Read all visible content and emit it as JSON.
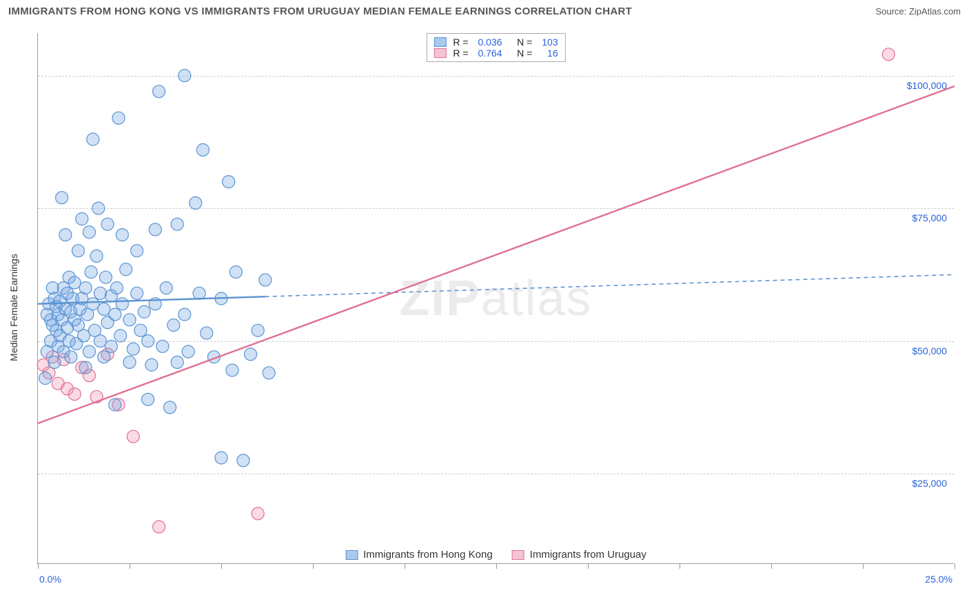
{
  "title": "IMMIGRANTS FROM HONG KONG VS IMMIGRANTS FROM URUGUAY MEDIAN FEMALE EARNINGS CORRELATION CHART",
  "source": "Source: ZipAtlas.com",
  "ylabel": "Median Female Earnings",
  "watermark_a": "ZIP",
  "watermark_b": "atlas",
  "chart": {
    "type": "scatter",
    "xlim": [
      0,
      25
    ],
    "ylim": [
      8000,
      108000
    ],
    "x_ticks": [
      0,
      2.5,
      5,
      7.5,
      10,
      12.5,
      15,
      17.5,
      20,
      22.5,
      25
    ],
    "x_tick_labels": {
      "0": "0.0%",
      "25": "25.0%"
    },
    "y_gridlines": [
      25000,
      50000,
      75000,
      100000
    ],
    "y_tick_labels": {
      "25000": "$25,000",
      "50000": "$50,000",
      "75000": "$75,000",
      "100000": "$100,000"
    },
    "background_color": "#ffffff",
    "grid_color": "#cccccc",
    "axis_color": "#999999",
    "label_color_blue": "#2962d9",
    "marker_radius": 9,
    "marker_stroke_width": 1.2,
    "line_width_solid": 2.4,
    "dash_pattern": "6,5"
  },
  "series": [
    {
      "name": "Immigrants from Hong Kong",
      "fill": "rgba(120,170,230,0.35)",
      "stroke": "#5a93d0",
      "swatch_fill": "#a9c9ee",
      "swatch_border": "#5a93d0",
      "R": "0.036",
      "N": "103",
      "trend": {
        "x1": 0,
        "y1": 57000,
        "x2": 25,
        "y2": 62500,
        "solid_until_x": 6.2
      },
      "points": [
        [
          0.2,
          43000
        ],
        [
          0.25,
          55000
        ],
        [
          0.25,
          48000
        ],
        [
          0.3,
          57000
        ],
        [
          0.35,
          54000
        ],
        [
          0.35,
          50000
        ],
        [
          0.4,
          60000
        ],
        [
          0.4,
          53000
        ],
        [
          0.45,
          46000
        ],
        [
          0.45,
          58000
        ],
        [
          0.5,
          56500
        ],
        [
          0.5,
          52000
        ],
        [
          0.55,
          55000
        ],
        [
          0.55,
          49000
        ],
        [
          0.6,
          57500
        ],
        [
          0.6,
          51000
        ],
        [
          0.65,
          77000
        ],
        [
          0.65,
          54000
        ],
        [
          0.7,
          60000
        ],
        [
          0.7,
          48000
        ],
        [
          0.75,
          70000
        ],
        [
          0.75,
          56000
        ],
        [
          0.8,
          59000
        ],
        [
          0.8,
          52500
        ],
        [
          0.85,
          62000
        ],
        [
          0.85,
          50000
        ],
        [
          0.9,
          55500
        ],
        [
          0.9,
          47000
        ],
        [
          0.95,
          58000
        ],
        [
          1.0,
          54000
        ],
        [
          1.0,
          61000
        ],
        [
          1.05,
          49500
        ],
        [
          1.1,
          67000
        ],
        [
          1.1,
          53000
        ],
        [
          1.15,
          56000
        ],
        [
          1.2,
          73000
        ],
        [
          1.2,
          58000
        ],
        [
          1.25,
          51000
        ],
        [
          1.3,
          45000
        ],
        [
          1.3,
          60000
        ],
        [
          1.35,
          55000
        ],
        [
          1.4,
          70500
        ],
        [
          1.4,
          48000
        ],
        [
          1.45,
          63000
        ],
        [
          1.5,
          88000
        ],
        [
          1.5,
          57000
        ],
        [
          1.55,
          52000
        ],
        [
          1.6,
          66000
        ],
        [
          1.65,
          75000
        ],
        [
          1.7,
          50000
        ],
        [
          1.7,
          59000
        ],
        [
          1.8,
          47000
        ],
        [
          1.8,
          56000
        ],
        [
          1.85,
          62000
        ],
        [
          1.9,
          72000
        ],
        [
          1.9,
          53500
        ],
        [
          2.0,
          58500
        ],
        [
          2.0,
          49000
        ],
        [
          2.1,
          38000
        ],
        [
          2.1,
          55000
        ],
        [
          2.15,
          60000
        ],
        [
          2.2,
          92000
        ],
        [
          2.25,
          51000
        ],
        [
          2.3,
          70000
        ],
        [
          2.3,
          57000
        ],
        [
          2.4,
          63500
        ],
        [
          2.5,
          46000
        ],
        [
          2.5,
          54000
        ],
        [
          2.6,
          48500
        ],
        [
          2.7,
          59000
        ],
        [
          2.7,
          67000
        ],
        [
          2.8,
          52000
        ],
        [
          2.9,
          55500
        ],
        [
          3.0,
          39000
        ],
        [
          3.0,
          50000
        ],
        [
          3.1,
          45500
        ],
        [
          3.2,
          71000
        ],
        [
          3.2,
          57000
        ],
        [
          3.3,
          97000
        ],
        [
          3.4,
          49000
        ],
        [
          3.5,
          60000
        ],
        [
          3.6,
          37500
        ],
        [
          3.7,
          53000
        ],
        [
          3.8,
          72000
        ],
        [
          3.8,
          46000
        ],
        [
          4.0,
          100000
        ],
        [
          4.0,
          55000
        ],
        [
          4.1,
          48000
        ],
        [
          4.3,
          76000
        ],
        [
          4.4,
          59000
        ],
        [
          4.5,
          86000
        ],
        [
          4.6,
          51500
        ],
        [
          4.8,
          47000
        ],
        [
          5.0,
          28000
        ],
        [
          5.0,
          58000
        ],
        [
          5.2,
          80000
        ],
        [
          5.3,
          44500
        ],
        [
          5.4,
          63000
        ],
        [
          5.6,
          27500
        ],
        [
          5.8,
          47500
        ],
        [
          6.0,
          52000
        ],
        [
          6.2,
          61500
        ],
        [
          6.3,
          44000
        ]
      ]
    },
    {
      "name": "Immigrants from Uruguay",
      "fill": "rgba(240,150,175,0.35)",
      "stroke": "#e06f93",
      "swatch_fill": "#f5c4d2",
      "swatch_border": "#e06f93",
      "R": "0.764",
      "N": "16",
      "trend": {
        "x1": 0,
        "y1": 34500,
        "x2": 25,
        "y2": 98000,
        "solid_until_x": 25
      },
      "points": [
        [
          0.15,
          45500
        ],
        [
          0.3,
          44000
        ],
        [
          0.4,
          47000
        ],
        [
          0.55,
          42000
        ],
        [
          0.7,
          46500
        ],
        [
          0.8,
          41000
        ],
        [
          1.0,
          40000
        ],
        [
          1.2,
          45000
        ],
        [
          1.4,
          43500
        ],
        [
          1.6,
          39500
        ],
        [
          1.9,
          47500
        ],
        [
          2.2,
          38000
        ],
        [
          2.6,
          32000
        ],
        [
          3.3,
          15000
        ],
        [
          6.0,
          17500
        ],
        [
          23.2,
          104000
        ]
      ]
    }
  ],
  "legend_bottom": [
    {
      "label": "Immigrants from Hong Kong",
      "fill": "#a9c9ee",
      "border": "#5a93d0"
    },
    {
      "label": "Immigrants from Uruguay",
      "fill": "#f5c4d2",
      "border": "#e06f93"
    }
  ]
}
